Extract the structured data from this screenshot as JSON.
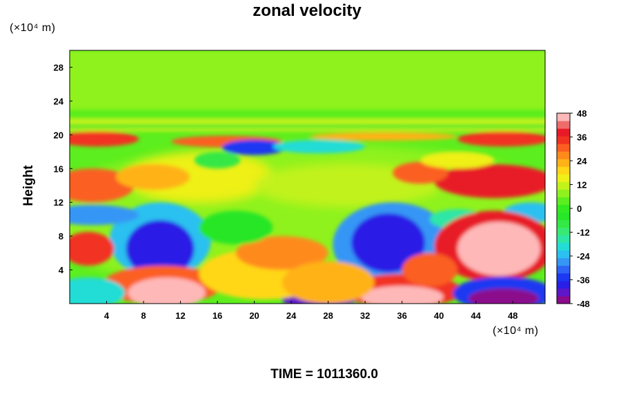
{
  "chart_data": {
    "type": "heatmap",
    "title": "zonal velocity",
    "ylabel": "Height",
    "xunit": "(×10⁴ m)",
    "yunit": "(×10⁴ m)",
    "xlim": [
      0,
      51.5
    ],
    "ylim": [
      0,
      30
    ],
    "xticks": [
      4,
      8,
      12,
      16,
      20,
      24,
      28,
      32,
      36,
      40,
      44,
      48
    ],
    "yticks": [
      4,
      8,
      12,
      16,
      20,
      24,
      28
    ],
    "colorbar": {
      "range": [
        -48,
        48
      ],
      "step": 4,
      "ticks": [
        48,
        36,
        24,
        12,
        0,
        -12,
        -24,
        -36,
        -48
      ],
      "colors": [
        "#8b0b8c",
        "#5e17c8",
        "#2a1fe6",
        "#1c38f2",
        "#2d64f5",
        "#3596f5",
        "#2bc0f0",
        "#23dcd6",
        "#2ee6a6",
        "#38ea74",
        "#34e845",
        "#28e628",
        "#32ea20",
        "#5cee1e",
        "#8ff21e",
        "#c2f21c",
        "#eef018",
        "#ffd716",
        "#ffb218",
        "#ff8a1c",
        "#fb5e20",
        "#f23220",
        "#e81a28",
        "#ee6c6c",
        "#ffb8b8"
      ]
    },
    "features": [
      {
        "x": 9.8,
        "y": 6.5,
        "value": -48
      },
      {
        "x": 35,
        "y": 7,
        "value": -45
      },
      {
        "x": 46,
        "y": 6.5,
        "value": 48
      },
      {
        "x": 10,
        "y": 1.5,
        "value": 46
      },
      {
        "x": 36,
        "y": 1,
        "value": 48
      },
      {
        "x": 47,
        "y": 0.8,
        "value": -48
      },
      {
        "x": 27,
        "y": 0.3,
        "value": -46
      },
      {
        "x": 2,
        "y": 14,
        "value": 32
      },
      {
        "x": 48,
        "y": 14.5,
        "value": 38
      },
      {
        "x": 20,
        "y": 18.5,
        "value": -38
      }
    ]
  },
  "footer": {
    "time_label": "TIME = 1011360.0"
  }
}
